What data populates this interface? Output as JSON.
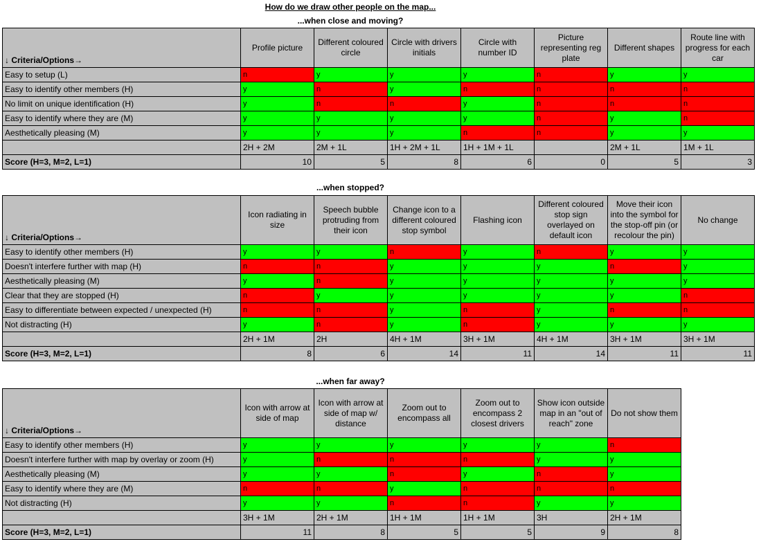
{
  "title": "How do we draw other people on the map...",
  "sections": [
    {
      "subtitle": "...when close and moving?",
      "header_label": "↓ Criteria/Options→",
      "options": [
        "Profile picture",
        "Different coloured circle",
        "Circle with drivers initials",
        "Circle with number ID",
        "Picture representing reg plate",
        "Different shapes",
        "Route line with progress for each car"
      ],
      "rows": [
        {
          "label": "Easy to setup (L)",
          "cells": [
            "n",
            "y",
            "y",
            "y",
            "n",
            "y",
            "y"
          ]
        },
        {
          "label": "Easy to identify other members (H)",
          "cells": [
            "y",
            "n",
            "y",
            "n",
            "n",
            "n",
            "n"
          ]
        },
        {
          "label": "No limit on unique identification (H)",
          "cells": [
            "y",
            "n",
            "n",
            "y",
            "n",
            "n",
            "n"
          ]
        },
        {
          "label": "Easy to identify where they are (M)",
          "cells": [
            "y",
            "y",
            "y",
            "y",
            "n",
            "y",
            "n"
          ]
        },
        {
          "label": "Aesthetically pleasing (M)",
          "cells": [
            "y",
            "y",
            "y",
            "n",
            "n",
            "y",
            "y"
          ]
        }
      ],
      "summary": [
        "2H + 2M",
        "2M + 1L",
        "1H + 2M + 1L",
        "1H + 1M + 1L",
        "",
        "2M + 1L",
        "1M + 1L"
      ],
      "score_label": "Score (H=3, M=2, L=1)",
      "scores": [
        "10",
        "5",
        "8",
        "6",
        "0",
        "5",
        "3"
      ]
    },
    {
      "subtitle": "...when stopped?",
      "header_label": "↓ Criteria/Options→",
      "options": [
        "Icon radiating in size",
        "Speech bubble protruding from their icon",
        "Change icon to a different coloured stop symbol",
        "Flashing icon",
        "Different coloured stop sign overlayed on default icon",
        "Move their icon into the symbol for the stop-off pin (or recolour the pin)",
        "No change"
      ],
      "rows": [
        {
          "label": "Easy to identify other members (H)",
          "cells": [
            "y",
            "y",
            "n",
            "y",
            "n",
            "y",
            "y"
          ]
        },
        {
          "label": "Doesn't interfere further with map (H)",
          "cells": [
            "n",
            "n",
            "y",
            "y",
            "y",
            "n",
            "y"
          ]
        },
        {
          "label": "Aesthetically pleasing (M)",
          "cells": [
            "y",
            "n",
            "y",
            "y",
            "y",
            "y",
            "y"
          ]
        },
        {
          "label": "Clear that they are stopped (H)",
          "cells": [
            "n",
            "y",
            "y",
            "y",
            "y",
            "y",
            "n"
          ]
        },
        {
          "label": "Easy to differentiate between expected / unexpected (H)",
          "cells": [
            "n",
            "n",
            "y",
            "n",
            "y",
            "n",
            "n"
          ]
        },
        {
          "label": "Not distracting (H)",
          "cells": [
            "y",
            "n",
            "y",
            "n",
            "y",
            "y",
            "y"
          ]
        }
      ],
      "summary": [
        "2H + 1M",
        "2H",
        "4H + 1M",
        "3H + 1M",
        "4H + 1M",
        "3H + 1M",
        "3H + 1M"
      ],
      "score_label": "Score (H=3, M=2, L=1)",
      "scores": [
        "8",
        "6",
        "14",
        "11",
        "14",
        "11",
        "11"
      ]
    },
    {
      "subtitle": "...when far away?",
      "header_label": "↓ Criteria/Options→",
      "options": [
        "Icon with arrow at side of map",
        "Icon with arrow at side of map w/ distance",
        "Zoom out to encompass all",
        "Zoom out to encompass 2 closest drivers",
        "Show icon outside map in an \"out of reach\" zone",
        "Do not show them"
      ],
      "rows": [
        {
          "label": "Easy to identify other members (H)",
          "cells": [
            "y",
            "y",
            "y",
            "y",
            "y",
            "n"
          ]
        },
        {
          "label": "Doesn't interfere further with map by overlay or zoom (H)",
          "cells": [
            "y",
            "n",
            "n",
            "n",
            "y",
            "y"
          ]
        },
        {
          "label": "Aesthetically pleasing (M)",
          "cells": [
            "y",
            "y",
            "n",
            "y",
            "n",
            "y"
          ]
        },
        {
          "label": "Easy to identify where they are (M)",
          "cells": [
            "n",
            "n",
            "y",
            "n",
            "n",
            "n"
          ]
        },
        {
          "label": "Not distracting (H)",
          "cells": [
            "y",
            "y",
            "n",
            "n",
            "y",
            "y"
          ]
        }
      ],
      "summary": [
        "3H + 1M",
        "2H + 1M",
        "1H + 1M",
        "1H + 1M",
        "3H",
        "2H + 1M"
      ],
      "score_label": "Score (H=3, M=2, L=1)",
      "scores": [
        "11",
        "8",
        "5",
        "5",
        "9",
        "8"
      ]
    }
  ],
  "colors": {
    "yes": "#00ff00",
    "no": "#ff0000",
    "grey": "#c0c0c0"
  }
}
